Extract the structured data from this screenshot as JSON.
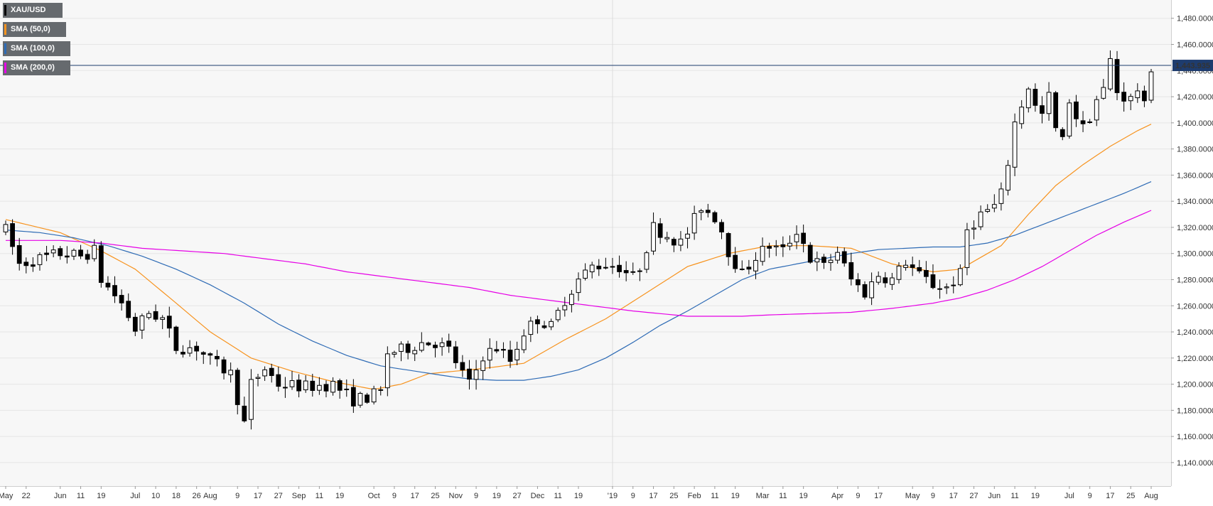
{
  "chart_data": {
    "type": "candlestick",
    "symbol": "XAU/USD",
    "title": "",
    "xlabel": "",
    "ylabel": "",
    "ylim": [
      1122,
      1494
    ],
    "y_ticks": [
      "1,140.0000",
      "1,160.0000",
      "1,180.0000",
      "1,200.0000",
      "1,220.0000",
      "1,240.0000",
      "1,260.0000",
      "1,280.0000",
      "1,300.0000",
      "1,320.0000",
      "1,340.0000",
      "1,360.0000",
      "1,380.0000",
      "1,400.0000",
      "1,420.0000",
      "1,440.0000",
      "1,460.0000",
      "1,480.0000"
    ],
    "x_ticks": [
      {
        "label": "May",
        "i": 0
      },
      {
        "label": "22",
        "i": 3
      },
      {
        "label": "Jun",
        "i": 8
      },
      {
        "label": "11",
        "i": 11
      },
      {
        "label": "19",
        "i": 14
      },
      {
        "label": "Jul",
        "i": 19
      },
      {
        "label": "10",
        "i": 22
      },
      {
        "label": "18",
        "i": 25
      },
      {
        "label": "26",
        "i": 28
      },
      {
        "label": "Aug",
        "i": 30
      },
      {
        "label": "9",
        "i": 34
      },
      {
        "label": "17",
        "i": 37
      },
      {
        "label": "27",
        "i": 40
      },
      {
        "label": "Sep",
        "i": 43
      },
      {
        "label": "11",
        "i": 46
      },
      {
        "label": "19",
        "i": 49
      },
      {
        "label": "Oct",
        "i": 54
      },
      {
        "label": "9",
        "i": 57
      },
      {
        "label": "17",
        "i": 60
      },
      {
        "label": "25",
        "i": 63
      },
      {
        "label": "Nov",
        "i": 66
      },
      {
        "label": "9",
        "i": 69
      },
      {
        "label": "19",
        "i": 72
      },
      {
        "label": "27",
        "i": 75
      },
      {
        "label": "Dec",
        "i": 78
      },
      {
        "label": "11",
        "i": 81
      },
      {
        "label": "19",
        "i": 84
      },
      {
        "label": "'19",
        "i": 89
      },
      {
        "label": "9",
        "i": 92
      },
      {
        "label": "17",
        "i": 95
      },
      {
        "label": "25",
        "i": 98
      },
      {
        "label": "Feb",
        "i": 101
      },
      {
        "label": "11",
        "i": 104
      },
      {
        "label": "19",
        "i": 107
      },
      {
        "label": "Mar",
        "i": 111
      },
      {
        "label": "11",
        "i": 114
      },
      {
        "label": "19",
        "i": 117
      },
      {
        "label": "Apr",
        "i": 122
      },
      {
        "label": "9",
        "i": 125
      },
      {
        "label": "17",
        "i": 128
      },
      {
        "label": "May",
        "i": 133
      },
      {
        "label": "9",
        "i": 136
      },
      {
        "label": "17",
        "i": 139
      },
      {
        "label": "27",
        "i": 142
      },
      {
        "label": "Jun",
        "i": 145
      },
      {
        "label": "11",
        "i": 148
      },
      {
        "label": "19",
        "i": 151
      },
      {
        "label": "Jul",
        "i": 156
      },
      {
        "label": "9",
        "i": 159
      },
      {
        "label": "17",
        "i": 162
      },
      {
        "label": "25",
        "i": 165
      },
      {
        "label": "Aug",
        "i": 168
      }
    ],
    "anchors": [
      [
        0,
        1318
      ],
      [
        2,
        1292
      ],
      [
        5,
        1296
      ],
      [
        8,
        1300
      ],
      [
        11,
        1298
      ],
      [
        13,
        1302
      ],
      [
        14,
        1280
      ],
      [
        17,
        1262
      ],
      [
        19,
        1242
      ],
      [
        21,
        1255
      ],
      [
        23,
        1250
      ],
      [
        25,
        1228
      ],
      [
        28,
        1228
      ],
      [
        30,
        1218
      ],
      [
        33,
        1208
      ],
      [
        35,
        1170
      ],
      [
        36,
        1200
      ],
      [
        38,
        1212
      ],
      [
        40,
        1200
      ],
      [
        44,
        1198
      ],
      [
        48,
        1200
      ],
      [
        51,
        1188
      ],
      [
        53,
        1190
      ],
      [
        55,
        1194
      ],
      [
        56,
        1224
      ],
      [
        58,
        1226
      ],
      [
        61,
        1232
      ],
      [
        63,
        1232
      ],
      [
        65,
        1226
      ],
      [
        68,
        1200
      ],
      [
        70,
        1222
      ],
      [
        72,
        1228
      ],
      [
        74,
        1218
      ],
      [
        76,
        1240
      ],
      [
        78,
        1250
      ],
      [
        80,
        1244
      ],
      [
        82,
        1265
      ],
      [
        84,
        1280
      ],
      [
        86,
        1290
      ],
      [
        88,
        1292
      ],
      [
        90,
        1290
      ],
      [
        92,
        1282
      ],
      [
        93,
        1290
      ],
      [
        95,
        1320
      ],
      [
        97,
        1314
      ],
      [
        99,
        1308
      ],
      [
        100,
        1316
      ],
      [
        102,
        1336
      ],
      [
        104,
        1328
      ],
      [
        105,
        1318
      ],
      [
        106,
        1302
      ],
      [
        108,
        1284
      ],
      [
        110,
        1298
      ],
      [
        112,
        1306
      ],
      [
        114,
        1302
      ],
      [
        116,
        1318
      ],
      [
        117,
        1308
      ],
      [
        118,
        1296
      ],
      [
        120,
        1290
      ],
      [
        122,
        1302
      ],
      [
        123,
        1290
      ],
      [
        124,
        1280
      ],
      [
        126,
        1270
      ],
      [
        128,
        1284
      ],
      [
        130,
        1280
      ],
      [
        132,
        1294
      ],
      [
        134,
        1283
      ],
      [
        135,
        1280
      ],
      [
        136,
        1276
      ],
      [
        138,
        1274
      ],
      [
        140,
        1284
      ],
      [
        141,
        1318
      ],
      [
        143,
        1330
      ],
      [
        145,
        1336
      ],
      [
        146,
        1345
      ],
      [
        147,
        1370
      ],
      [
        148,
        1400
      ],
      [
        149,
        1414
      ],
      [
        150,
        1428
      ],
      [
        151,
        1412
      ],
      [
        152,
        1406
      ],
      [
        153,
        1420
      ],
      [
        154,
        1395
      ],
      [
        155,
        1386
      ],
      [
        156,
        1418
      ],
      [
        157,
        1405
      ],
      [
        158,
        1396
      ],
      [
        159,
        1405
      ],
      [
        160,
        1418
      ],
      [
        161,
        1425
      ],
      [
        162,
        1448
      ],
      [
        163,
        1424
      ],
      [
        164,
        1420
      ],
      [
        165,
        1418
      ],
      [
        166,
        1426
      ],
      [
        167,
        1412
      ],
      [
        168,
        1443
      ]
    ],
    "sma": [
      {
        "name": "SMA (50,0)",
        "color": "#f7931e",
        "points": [
          [
            0,
            1326
          ],
          [
            8,
            1316
          ],
          [
            14,
            1302
          ],
          [
            19,
            1288
          ],
          [
            25,
            1262
          ],
          [
            30,
            1240
          ],
          [
            36,
            1220
          ],
          [
            42,
            1210
          ],
          [
            48,
            1202
          ],
          [
            54,
            1196
          ],
          [
            58,
            1200
          ],
          [
            62,
            1208
          ],
          [
            66,
            1210
          ],
          [
            70,
            1212
          ],
          [
            76,
            1216
          ],
          [
            82,
            1234
          ],
          [
            88,
            1250
          ],
          [
            94,
            1270
          ],
          [
            100,
            1290
          ],
          [
            106,
            1300
          ],
          [
            112,
            1306
          ],
          [
            118,
            1306
          ],
          [
            124,
            1304
          ],
          [
            130,
            1292
          ],
          [
            136,
            1286
          ],
          [
            140,
            1288
          ],
          [
            142,
            1294
          ],
          [
            146,
            1306
          ],
          [
            150,
            1330
          ],
          [
            154,
            1352
          ],
          [
            158,
            1368
          ],
          [
            162,
            1382
          ],
          [
            166,
            1394
          ],
          [
            168,
            1399
          ]
        ]
      },
      {
        "name": "SMA (100,0)",
        "color": "#2e6bb5",
        "points": [
          [
            0,
            1318
          ],
          [
            5,
            1316
          ],
          [
            10,
            1312
          ],
          [
            15,
            1306
          ],
          [
            20,
            1298
          ],
          [
            25,
            1288
          ],
          [
            30,
            1276
          ],
          [
            35,
            1262
          ],
          [
            40,
            1246
          ],
          [
            45,
            1233
          ],
          [
            50,
            1222
          ],
          [
            55,
            1214
          ],
          [
            60,
            1210
          ],
          [
            65,
            1206
          ],
          [
            68,
            1204
          ],
          [
            72,
            1203
          ],
          [
            76,
            1203
          ],
          [
            80,
            1206
          ],
          [
            84,
            1211
          ],
          [
            88,
            1220
          ],
          [
            92,
            1232
          ],
          [
            96,
            1245
          ],
          [
            100,
            1256
          ],
          [
            104,
            1268
          ],
          [
            108,
            1280
          ],
          [
            112,
            1288
          ],
          [
            116,
            1292
          ],
          [
            120,
            1296
          ],
          [
            124,
            1300
          ],
          [
            128,
            1303
          ],
          [
            132,
            1304
          ],
          [
            136,
            1305
          ],
          [
            140,
            1305
          ],
          [
            144,
            1308
          ],
          [
            148,
            1314
          ],
          [
            152,
            1322
          ],
          [
            156,
            1330
          ],
          [
            160,
            1338
          ],
          [
            164,
            1346
          ],
          [
            168,
            1355
          ]
        ]
      },
      {
        "name": "SMA (200,0)",
        "color": "#e600e6",
        "points": [
          [
            0,
            1310
          ],
          [
            8,
            1310
          ],
          [
            14,
            1308
          ],
          [
            20,
            1304
          ],
          [
            26,
            1302
          ],
          [
            32,
            1300
          ],
          [
            38,
            1296
          ],
          [
            44,
            1292
          ],
          [
            50,
            1286
          ],
          [
            56,
            1282
          ],
          [
            62,
            1278
          ],
          [
            68,
            1274
          ],
          [
            74,
            1268
          ],
          [
            80,
            1264
          ],
          [
            86,
            1260
          ],
          [
            92,
            1256
          ],
          [
            96,
            1254
          ],
          [
            100,
            1252
          ],
          [
            104,
            1252
          ],
          [
            108,
            1252
          ],
          [
            112,
            1253
          ],
          [
            118,
            1254
          ],
          [
            124,
            1255
          ],
          [
            130,
            1258
          ],
          [
            136,
            1262
          ],
          [
            140,
            1266
          ],
          [
            144,
            1272
          ],
          [
            148,
            1280
          ],
          [
            152,
            1290
          ],
          [
            156,
            1302
          ],
          [
            160,
            1314
          ],
          [
            164,
            1324
          ],
          [
            168,
            1333
          ]
        ]
      }
    ],
    "current_price": 1443.935,
    "current_price_label": "1,443.935"
  },
  "legend": [
    {
      "label": "XAU/USD",
      "color": "#000000"
    },
    {
      "label": "SMA (50,0)",
      "color": "#f7931e"
    },
    {
      "label": "SMA (100,0)",
      "color": "#2e6bb5"
    },
    {
      "label": "SMA (200,0)",
      "color": "#e600e6"
    }
  ],
  "colors": {
    "background": "#f7f7f7",
    "grid": "#e6e6e6",
    "up": "#ffffff",
    "down": "#000000",
    "price_line": "#1e3c6e",
    "price_badge": "#1e3c6e"
  }
}
